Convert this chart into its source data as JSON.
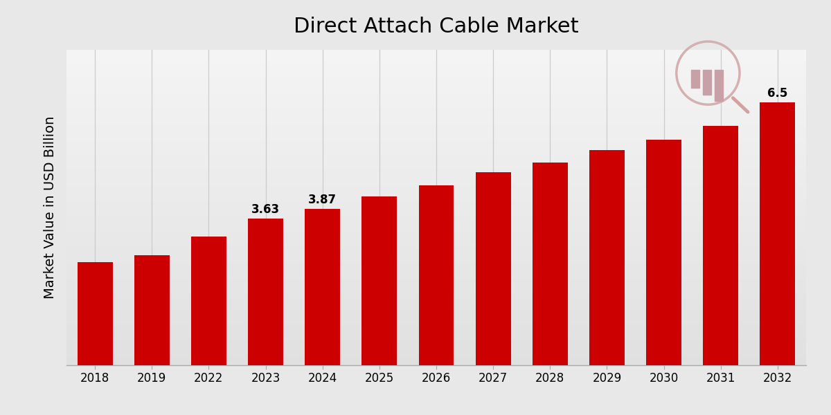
{
  "title": "Direct Attach Cable Market",
  "ylabel": "Market Value in USD Billion",
  "categories": [
    "2018",
    "2019",
    "2022",
    "2023",
    "2024",
    "2025",
    "2026",
    "2027",
    "2028",
    "2029",
    "2030",
    "2031",
    "2032"
  ],
  "values": [
    2.55,
    2.72,
    3.18,
    3.63,
    3.87,
    4.18,
    4.45,
    4.77,
    5.02,
    5.32,
    5.57,
    5.92,
    6.5
  ],
  "bar_color": "#cc0000",
  "labeled_bars": {
    "3": "3.63",
    "4": "3.87",
    "12": "6.5"
  },
  "title_fontsize": 22,
  "label_fontsize": 12,
  "ylabel_fontsize": 14,
  "xlabel_fontsize": 12,
  "ylim": [
    0,
    7.8
  ],
  "grid_color": "#c8c8c8",
  "bar_width": 0.62
}
